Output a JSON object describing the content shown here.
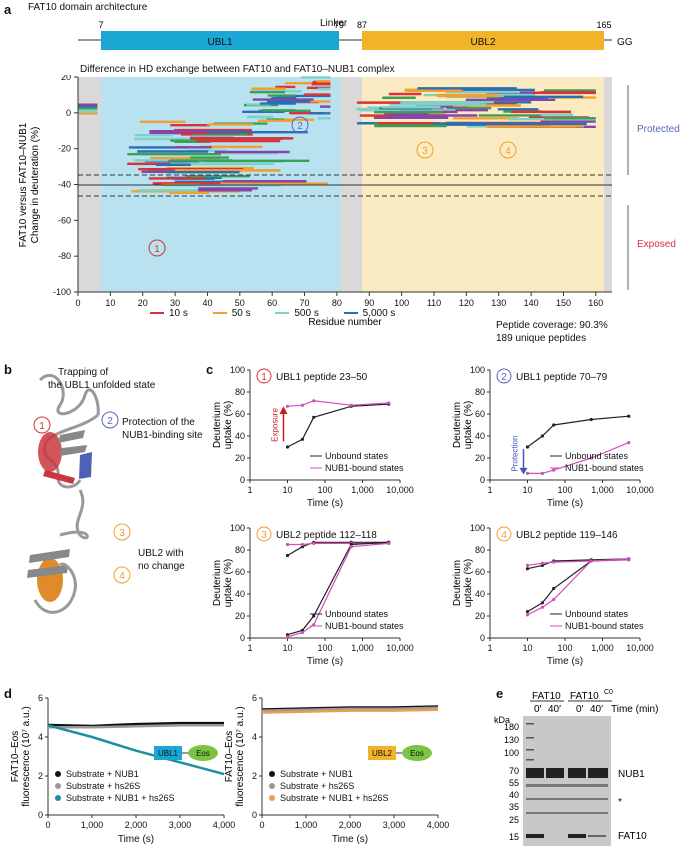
{
  "panel_labels": {
    "a": "a",
    "b": "b",
    "c": "c",
    "d": "d",
    "e": "e"
  },
  "domain": {
    "title": "FAT10 domain architecture",
    "linker_label": "Linker",
    "ubl1_label": "UBL1",
    "ubl2_label": "UBL2",
    "gg_label": "GG",
    "pos_7": "7",
    "pos_79": "79",
    "pos_87": "87",
    "pos_165": "165",
    "colors": {
      "ubl1": "#1aa7d3",
      "ubl2": "#f1b32a",
      "ubl1_bg": "#b8e2f0",
      "ubl2_bg": "#fbebc2",
      "grey_bg": "#d9d9d9"
    }
  },
  "hdx": {
    "title": "Difference in HD exchange between FAT10 and FAT10–NUB1 complex",
    "ylabel1": "FAT10 versus FAT10–NUB1",
    "ylabel2": "Change in deuteration (%)",
    "xlabel": "Residue number",
    "protected_label": "Protected",
    "exposed_label": "Exposed",
    "coverage": "Peptide coverage: 90.3%",
    "peptides": "189 unique peptides",
    "markers": [
      "1",
      "2",
      "3",
      "4"
    ],
    "legend": [
      {
        "label": "10 s",
        "color": "#d8323a"
      },
      {
        "label": "50 s",
        "color": "#f0a030"
      },
      {
        "label": "500 s",
        "color": "#7fd1c8"
      },
      {
        "label": "5,000 s",
        "color": "#2a6fb4"
      }
    ]
  },
  "structure": {
    "trap_label_1": "Trapping of",
    "trap_label_2": "the UBL1 unfolded state",
    "protect_label_1": "Protection of the",
    "protect_label_2": "NUB1-binding site",
    "ubl2_label_1": "UBL2 with",
    "ubl2_label_2": "no change"
  },
  "uptake_plots": [
    {
      "num": "1",
      "title": "UBL1 peptide 23–50",
      "color": "#d8323a",
      "arrow_label": "Exposure",
      "legend": [
        "Unbound states",
        "NUB1-bound states"
      ]
    },
    {
      "num": "2",
      "title": "UBL1 peptide 70–79",
      "color": "#5566bb",
      "arrow_label": "Protection",
      "legend": [
        "Unbound states",
        "NUB1-bound states"
      ]
    },
    {
      "num": "3",
      "title": "UBL2 peptide 112–118",
      "color": "#f0a030",
      "arrow_label": "",
      "legend": [
        "Unbound states",
        "NUB1-bound states"
      ]
    },
    {
      "num": "4",
      "title": "UBL2 peptide 119–146",
      "color": "#f0a030",
      "arrow_label": "",
      "legend": [
        "Unbound states",
        "NUB1-bound states"
      ]
    }
  ],
  "uptake_axes": {
    "ylabel1": "Deuterium",
    "ylabel2": "uptake (%)",
    "xlabel": "Time (s)",
    "xticks": [
      "1",
      "10",
      "100",
      "1,000",
      "10,000"
    ],
    "yticks": [
      "0",
      "20",
      "40",
      "60",
      "80",
      "100"
    ]
  },
  "fluor": {
    "ylabel1": "FAT10–Eos",
    "ylabel2": "fluorescence (10⁷ a.u.)",
    "xlabel": "Time (s)",
    "xticks": [
      "0",
      "1,000",
      "2,000",
      "3,000",
      "4,000"
    ],
    "yticks": [
      "0",
      "2",
      "4",
      "6"
    ],
    "left": {
      "tag": "UBL1",
      "eos": "Eos",
      "legend": [
        "Substrate + NUB1",
        "Substrate + hs26S",
        "Substrate + NUB1 + hs26S"
      ]
    },
    "right": {
      "tag": "UBL2",
      "eos": "Eos",
      "legend": [
        "Substrate + NUB1",
        "Substrate + hs26S",
        "Substrate + NUB1 + hs26S"
      ]
    }
  },
  "gel": {
    "fat10": "FAT10",
    "fat10c0": "FAT10",
    "c0_sup": "C0",
    "lanes": [
      "0′",
      "40′",
      "0′",
      "40′"
    ],
    "time_label": "Time (min)",
    "kda": "kDa",
    "markers": [
      "180",
      "130",
      "100",
      "70",
      "55",
      "40",
      "35",
      "25",
      "15"
    ],
    "nub1": "NUB1",
    "star": "*",
    "fat10_band": "FAT10"
  },
  "chart_data": [
    {
      "type": "line",
      "title": "UBL1 peptide 23–50",
      "x": [
        10,
        25,
        50,
        500,
        5000
      ],
      "series": [
        {
          "name": "Unbound states",
          "values": [
            30,
            37,
            57,
            67,
            69
          ]
        },
        {
          "name": "NUB1-bound states",
          "values": [
            67,
            68,
            72,
            68,
            70
          ]
        }
      ],
      "xlabel": "Time (s)",
      "ylabel": "Deuterium uptake (%)",
      "ylim": [
        0,
        100
      ],
      "xscale": "log",
      "xlim": [
        1,
        10000
      ]
    },
    {
      "type": "line",
      "title": "UBL1 peptide 70–79",
      "x": [
        10,
        25,
        50,
        500,
        5000
      ],
      "series": [
        {
          "name": "Unbound states",
          "values": [
            30,
            40,
            50,
            55,
            58
          ]
        },
        {
          "name": "NUB1-bound states",
          "values": [
            6,
            6,
            9,
            20,
            34
          ]
        }
      ],
      "xlabel": "Time (s)",
      "ylabel": "Deuterium uptake (%)",
      "ylim": [
        0,
        100
      ],
      "xscale": "log",
      "xlim": [
        1,
        10000
      ]
    },
    {
      "type": "line",
      "title": "UBL2 peptide 112–118",
      "x": [
        10,
        25,
        50,
        500,
        5000
      ],
      "series": [
        {
          "name": "Unbound states",
          "values": [
            75,
            83,
            87,
            87,
            87
          ]
        },
        {
          "name": "NUB1-bound states",
          "values": [
            85,
            85,
            86,
            86,
            86
          ]
        },
        {
          "name": "Unbound states (slow)",
          "values": [
            3,
            7,
            20,
            85,
            87
          ]
        },
        {
          "name": "NUB1-bound states (slow)",
          "values": [
            1,
            5,
            12,
            83,
            86
          ]
        }
      ],
      "xlabel": "Time (s)",
      "ylabel": "Deuterium uptake (%)",
      "ylim": [
        0,
        100
      ],
      "xscale": "log",
      "xlim": [
        1,
        10000
      ]
    },
    {
      "type": "line",
      "title": "UBL2 peptide 119–146",
      "x": [
        10,
        25,
        50,
        500,
        5000
      ],
      "series": [
        {
          "name": "Unbound states",
          "values": [
            63,
            66,
            70,
            71,
            72
          ]
        },
        {
          "name": "NUB1-bound states",
          "values": [
            66,
            68,
            69,
            70,
            71
          ]
        },
        {
          "name": "Unbound states (slow)",
          "values": [
            24,
            32,
            45,
            70,
            72
          ]
        },
        {
          "name": "NUB1-bound states (slow)",
          "values": [
            21,
            28,
            35,
            70,
            72
          ]
        }
      ],
      "xlabel": "Time (s)",
      "ylabel": "Deuterium uptake (%)",
      "ylim": [
        0,
        100
      ],
      "xscale": "log",
      "xlim": [
        1,
        10000
      ]
    },
    {
      "type": "line",
      "title": "FAT10–Eos UBL1",
      "x": [
        0,
        1000,
        2000,
        3000,
        4000
      ],
      "series": [
        {
          "name": "Substrate + NUB1",
          "values": [
            4.6,
            4.55,
            4.65,
            4.7,
            4.7
          ]
        },
        {
          "name": "Substrate + hs26S",
          "values": [
            4.5,
            4.5,
            4.55,
            4.6,
            4.6
          ]
        },
        {
          "name": "Substrate + NUB1 + hs26S",
          "values": [
            4.6,
            4.0,
            3.3,
            2.7,
            2.1
          ]
        }
      ],
      "xlabel": "Time (s)",
      "ylabel": "FAT10–Eos fluorescence (10⁷ a.u.)",
      "ylim": [
        0,
        6
      ]
    },
    {
      "type": "line",
      "title": "FAT10–Eos UBL2",
      "x": [
        0,
        1000,
        2000,
        3000,
        4000
      ],
      "series": [
        {
          "name": "Substrate + NUB1",
          "values": [
            5.4,
            5.45,
            5.5,
            5.5,
            5.55
          ]
        },
        {
          "name": "Substrate + hs26S",
          "values": [
            5.35,
            5.4,
            5.45,
            5.45,
            5.5
          ]
        },
        {
          "name": "Substrate + NUB1 + hs26S",
          "values": [
            5.25,
            5.3,
            5.35,
            5.35,
            5.4
          ]
        }
      ],
      "xlabel": "Time (s)",
      "ylabel": "FAT10–Eos fluorescence (10⁷ a.u.)",
      "ylim": [
        0,
        6
      ]
    }
  ]
}
